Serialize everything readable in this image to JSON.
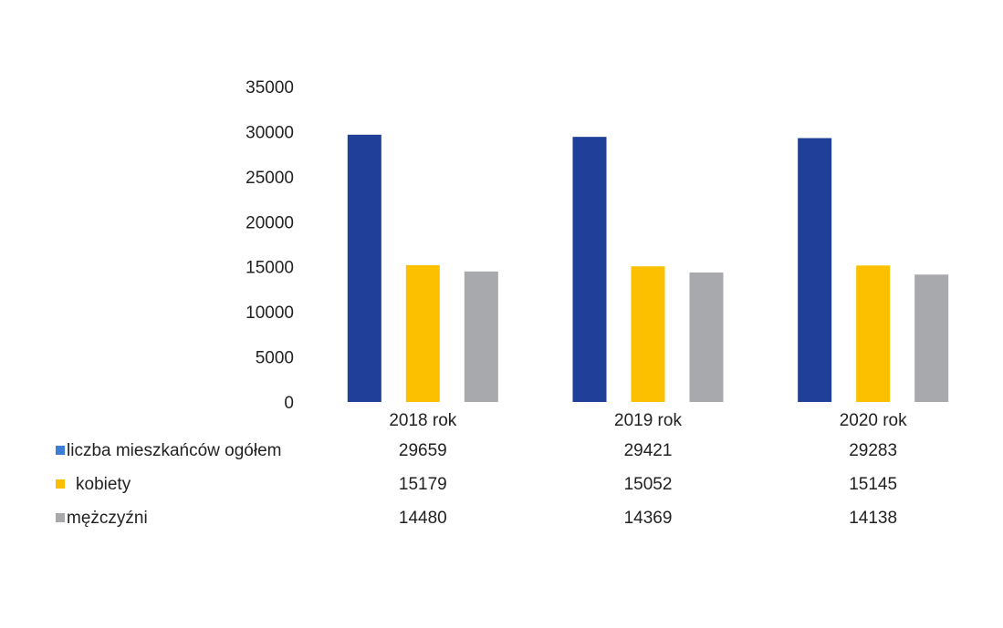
{
  "chart_data": {
    "type": "bar",
    "categories": [
      "2018 rok",
      "2019 rok",
      "2020 rok"
    ],
    "series": [
      {
        "name": "liczba mieszkańców ogółem",
        "values": [
          29659,
          29421,
          29283
        ],
        "color": "#1f3f99",
        "legend_color": "#3d7fd6"
      },
      {
        "name": "kobiety",
        "values": [
          15179,
          15052,
          15145
        ],
        "color": "#fcc000",
        "legend_color": "#fcc000"
      },
      {
        "name": "mężczyźni",
        "values": [
          14480,
          14369,
          14138
        ],
        "color": "#a7a9ac",
        "legend_color": "#a7a9ac"
      }
    ],
    "yticks": [
      "0",
      "5000",
      "10000",
      "15000",
      "20000",
      "25000",
      "30000",
      "35000"
    ],
    "ylim": [
      0,
      35000
    ],
    "grid": false,
    "data_table": true
  }
}
